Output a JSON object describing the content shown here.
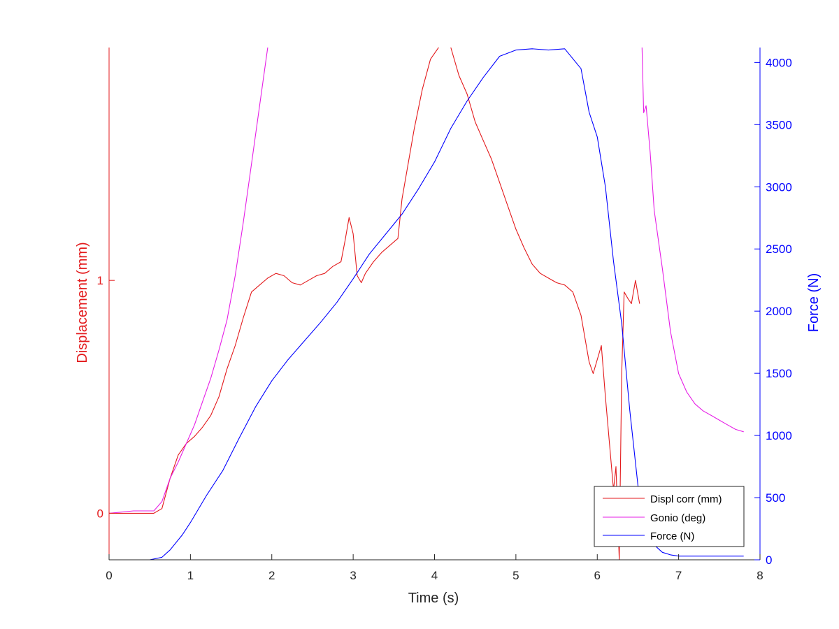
{
  "chart_data": {
    "type": "line",
    "x_axis": {
      "label": "Time (s)",
      "range": [
        0,
        8
      ],
      "ticks": [
        "0",
        "1",
        "2",
        "3",
        "4",
        "5",
        "6",
        "7",
        "8"
      ]
    },
    "y_axis_left": {
      "label": "Displacement (mm)",
      "range": [
        -0.2,
        2.0
      ],
      "ticks": [
        {
          "value": 0,
          "label": "0"
        },
        {
          "value": 1,
          "label": "1"
        }
      ],
      "color": "#e31a1c"
    },
    "y_axis_right": {
      "label": "Force (N)",
      "range": [
        0,
        4120
      ],
      "ticks": [
        {
          "value": 0,
          "label": "0"
        },
        {
          "value": 500,
          "label": "500"
        },
        {
          "value": 1000,
          "label": "1000"
        },
        {
          "value": 1500,
          "label": "1500"
        },
        {
          "value": 2000,
          "label": "2000"
        },
        {
          "value": 2500,
          "label": "2500"
        },
        {
          "value": 3000,
          "label": "3000"
        },
        {
          "value": 3500,
          "label": "3500"
        },
        {
          "value": 4000,
          "label": "4000"
        }
      ],
      "color": "#0000ff"
    },
    "legend_position": "bottom-right",
    "series": [
      {
        "name": "Displ corr (mm)",
        "axis": "left",
        "color": "#e31a1c",
        "x": [
          0,
          0.3,
          0.55,
          0.65,
          0.75,
          0.85,
          0.95,
          1.05,
          1.15,
          1.25,
          1.35,
          1.45,
          1.55,
          1.65,
          1.75,
          1.85,
          1.95,
          2.05,
          2.15,
          2.25,
          2.35,
          2.45,
          2.55,
          2.65,
          2.75,
          2.85,
          2.9,
          2.95,
          3.0,
          3.05,
          3.1,
          3.15,
          3.25,
          3.35,
          3.45,
          3.55,
          3.6,
          3.65,
          3.75,
          3.85,
          3.95,
          4.05,
          4.15,
          4.2,
          4.3,
          4.4,
          4.5,
          4.6,
          4.7,
          4.8,
          4.9,
          5.0,
          5.1,
          5.2,
          5.3,
          5.4,
          5.5,
          5.6,
          5.7,
          5.8,
          5.9,
          5.95,
          6.05,
          6.1,
          6.15,
          6.2,
          6.23,
          6.27,
          6.3,
          6.33,
          6.38,
          6.42,
          6.47,
          6.52
        ],
        "values": [
          0.0,
          0.0,
          0.0,
          0.02,
          0.15,
          0.25,
          0.3,
          0.33,
          0.37,
          0.42,
          0.5,
          0.62,
          0.72,
          0.84,
          0.95,
          0.98,
          1.01,
          1.03,
          1.02,
          0.99,
          0.98,
          1.0,
          1.02,
          1.03,
          1.06,
          1.08,
          1.17,
          1.27,
          1.2,
          1.02,
          0.99,
          1.03,
          1.08,
          1.12,
          1.15,
          1.18,
          1.35,
          1.45,
          1.65,
          1.82,
          1.95,
          2.0,
          2.06,
          2.0,
          1.88,
          1.8,
          1.68,
          1.6,
          1.52,
          1.42,
          1.32,
          1.22,
          1.14,
          1.07,
          1.03,
          1.01,
          0.99,
          0.98,
          0.95,
          0.85,
          0.65,
          0.6,
          0.72,
          0.5,
          0.3,
          0.1,
          0.2,
          -0.2,
          0.6,
          0.95,
          0.92,
          0.9,
          1.0,
          0.9
        ]
      },
      {
        "name": "Gonio (deg)",
        "axis": "left",
        "color": "#e61ee6",
        "x": [
          0,
          0.3,
          0.55,
          0.65,
          0.75,
          0.85,
          0.95,
          1.05,
          1.15,
          1.25,
          1.35,
          1.45,
          1.55,
          1.65,
          1.75,
          1.85,
          1.95,
          6.55,
          6.57,
          6.6,
          6.65,
          6.7,
          6.8,
          6.9,
          7.0,
          7.1,
          7.2,
          7.3,
          7.4,
          7.5,
          7.6,
          7.7,
          7.8
        ],
        "values": [
          0.0,
          0.01,
          0.01,
          0.05,
          0.15,
          0.22,
          0.3,
          0.38,
          0.48,
          0.58,
          0.7,
          0.83,
          1.02,
          1.25,
          1.5,
          1.75,
          2.0,
          2.0,
          1.72,
          1.75,
          1.55,
          1.3,
          1.05,
          0.78,
          0.6,
          0.52,
          0.47,
          0.44,
          0.42,
          0.4,
          0.38,
          0.36,
          0.35
        ]
      },
      {
        "name": "Force (N)",
        "axis": "right",
        "color": "#0000ff",
        "x": [
          0,
          0.5,
          0.65,
          0.75,
          0.9,
          1.0,
          1.2,
          1.4,
          1.6,
          1.8,
          2.0,
          2.2,
          2.4,
          2.6,
          2.8,
          3.0,
          3.2,
          3.4,
          3.6,
          3.8,
          4.0,
          4.2,
          4.4,
          4.6,
          4.8,
          5.0,
          5.2,
          5.4,
          5.6,
          5.8,
          5.9,
          6.0,
          6.1,
          6.2,
          6.3,
          6.4,
          6.5,
          6.6,
          6.7,
          6.8,
          6.9,
          7.0,
          7.2,
          7.4,
          7.6,
          7.8
        ],
        "values": [
          0,
          0,
          20,
          80,
          200,
          300,
          520,
          720,
          980,
          1230,
          1440,
          1610,
          1760,
          1910,
          2070,
          2260,
          2460,
          2620,
          2780,
          2980,
          3200,
          3470,
          3690,
          3880,
          4050,
          4100,
          4110,
          4100,
          4110,
          3950,
          3600,
          3400,
          3000,
          2400,
          1900,
          1200,
          600,
          250,
          120,
          60,
          40,
          30,
          30,
          30,
          30,
          30
        ]
      }
    ]
  }
}
